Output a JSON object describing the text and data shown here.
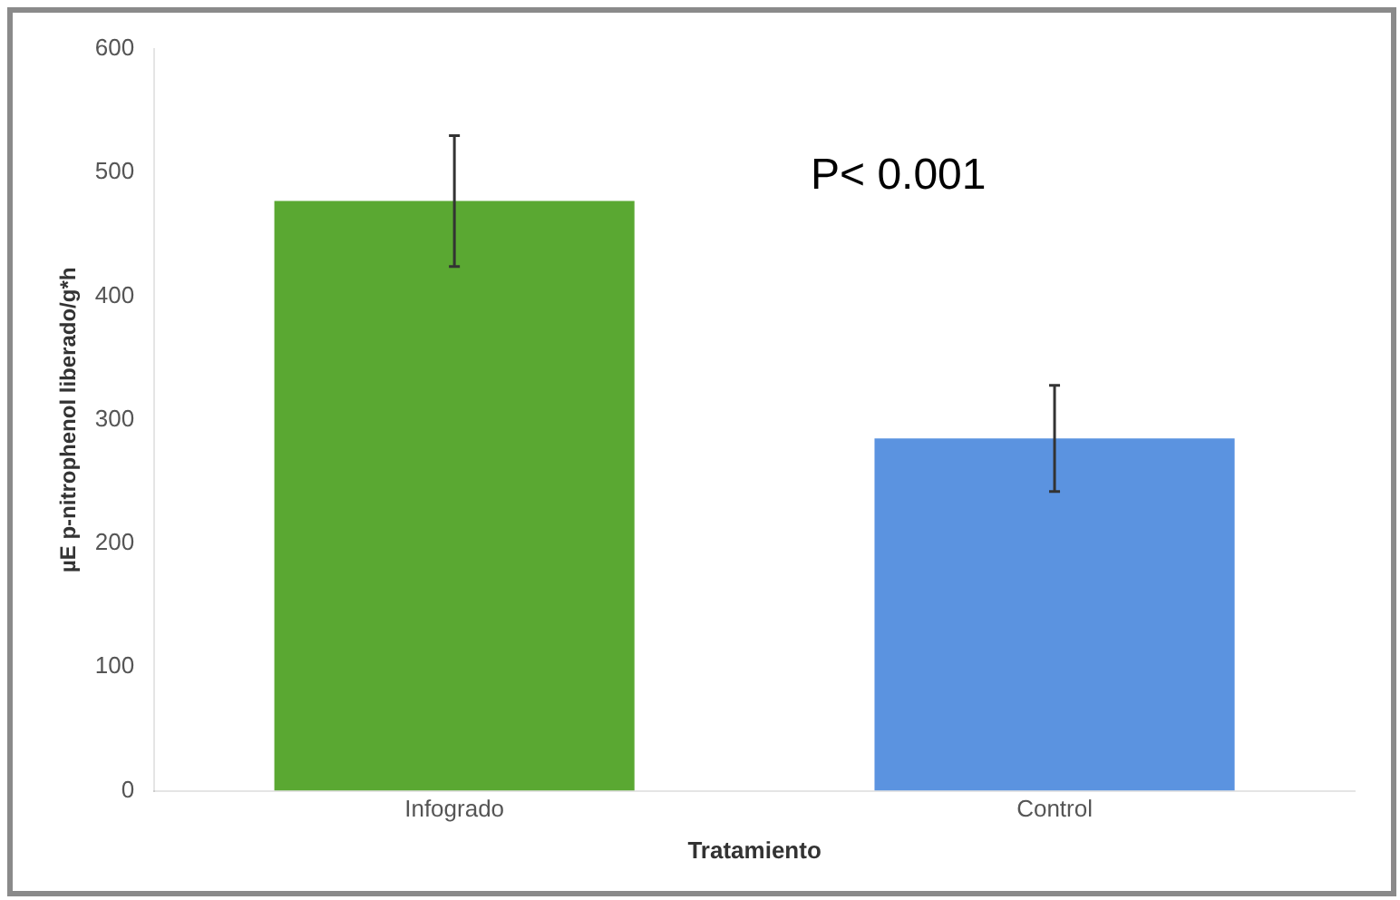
{
  "chart_data": {
    "type": "bar",
    "xlabel": "Tratamiento",
    "ylabel": "µE p-nitrophenol liberado/g*h",
    "categories": [
      "Infogrado",
      "Control"
    ],
    "colors": [
      "#5aa832",
      "#5b93e0"
    ],
    "values": [
      477,
      285
    ],
    "errors": [
      53,
      43
    ],
    "ylim": [
      0,
      600
    ],
    "yticks": [
      0,
      100,
      200,
      300,
      400,
      500,
      600
    ],
    "grid": false,
    "legend": false,
    "annotations": [
      "P< 0.001"
    ]
  }
}
